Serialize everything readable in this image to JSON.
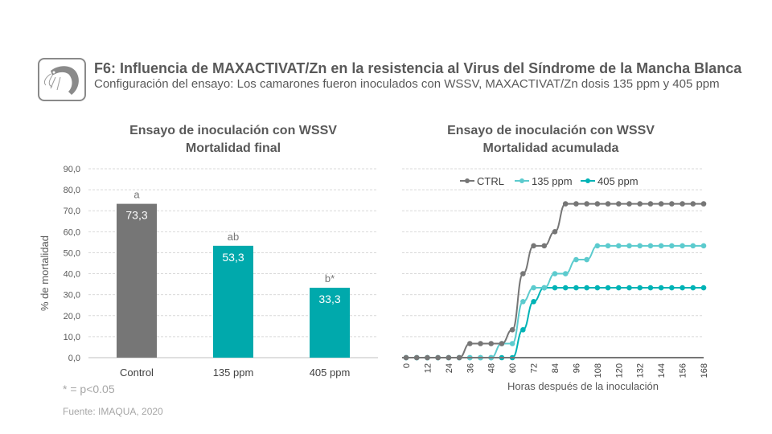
{
  "header": {
    "title": "F6: Influencia de MAXACTIVAT/Zn en la resistencia al Virus del Síndrome de la Mancha Blanca",
    "subtitle": "Configuración del ensayo: Los camarones fueron inoculados con WSSV, MAXACTIVAT/Zn dosis 135 ppm y 405 ppm",
    "logo_icon": "shrimp-icon"
  },
  "chart_data": [
    {
      "type": "bar",
      "title": [
        "Ensayo de inoculación con WSSV",
        "Mortalidad final"
      ],
      "categories": [
        "Control",
        "135 ppm",
        "405 ppm"
      ],
      "values": [
        73.3,
        53.3,
        33.3
      ],
      "value_labels": [
        "73,3",
        "53,3",
        "33,3"
      ],
      "significance": [
        "a",
        "ab",
        "b*"
      ],
      "colors": [
        "#767676",
        "#00a9ac",
        "#00a9ac"
      ],
      "ylabel": "% de mortalidad",
      "ylim": [
        0,
        90
      ],
      "yticks": [
        "0,0",
        "10,0",
        "20,0",
        "30,0",
        "40,0",
        "50,0",
        "60,0",
        "70,0",
        "80,0",
        "90,0"
      ],
      "grid": true
    },
    {
      "type": "line",
      "title": [
        "Ensayo de inoculación con WSSV",
        "Mortalidad acumulada"
      ],
      "xlabel": "Horas después de la inoculación",
      "xticks": [
        0,
        12,
        24,
        36,
        48,
        60,
        72,
        84,
        96,
        108,
        120,
        132,
        144,
        156,
        168
      ],
      "ylim": [
        0,
        90
      ],
      "grid": true,
      "legend": "top",
      "x": [
        0,
        6,
        12,
        18,
        24,
        30,
        36,
        42,
        48,
        54,
        60,
        66,
        72,
        78,
        84,
        90,
        96,
        102,
        108,
        114,
        120,
        126,
        132,
        138,
        144,
        150,
        156,
        162,
        168
      ],
      "series": [
        {
          "name": "CTRL",
          "color": "#767676",
          "values": [
            0,
            0,
            0,
            0,
            0,
            0,
            6.7,
            6.7,
            6.7,
            6.7,
            13.3,
            40,
            53.3,
            53.3,
            60,
            73.3,
            73.3,
            73.3,
            73.3,
            73.3,
            73.3,
            73.3,
            73.3,
            73.3,
            73.3,
            73.3,
            73.3,
            73.3,
            73.3
          ]
        },
        {
          "name": "135 ppm",
          "color": "#5ccbce",
          "values": [
            0,
            0,
            0,
            0,
            0,
            0,
            0,
            0,
            0,
            6.7,
            6.7,
            26.7,
            33.3,
            33.3,
            40,
            40,
            46.7,
            46.7,
            53.3,
            53.3,
            53.3,
            53.3,
            53.3,
            53.3,
            53.3,
            53.3,
            53.3,
            53.3,
            53.3
          ]
        },
        {
          "name": "405 ppm",
          "color": "#00b3b6",
          "values": [
            0,
            0,
            0,
            0,
            0,
            0,
            0,
            0,
            0,
            0,
            0,
            13.3,
            26.7,
            33.3,
            33.3,
            33.3,
            33.3,
            33.3,
            33.3,
            33.3,
            33.3,
            33.3,
            33.3,
            33.3,
            33.3,
            33.3,
            33.3,
            33.3,
            33.3
          ]
        }
      ]
    }
  ],
  "footer": {
    "note": "* = p<0.05",
    "source": "Fuente: IMAQUA, 2020"
  }
}
